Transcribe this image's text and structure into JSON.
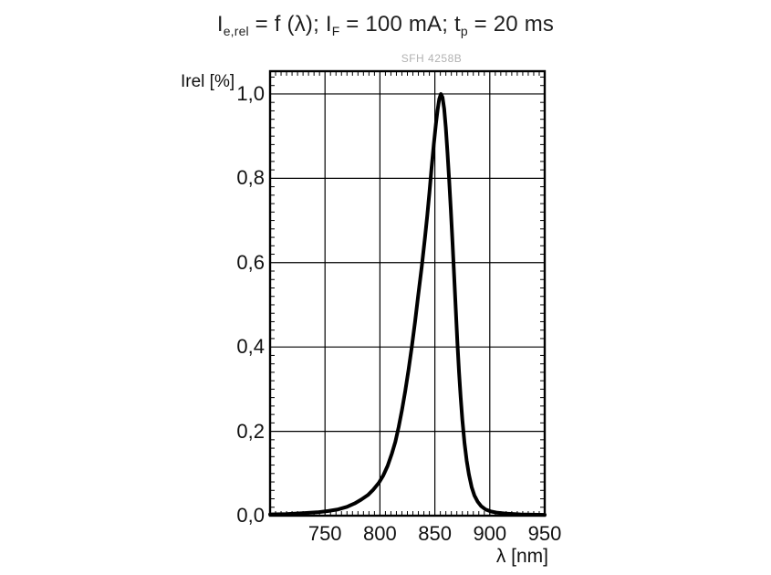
{
  "title_parts": [
    {
      "text": "I",
      "sub": false
    },
    {
      "text": "e,rel",
      "sub": true
    },
    {
      "text": " = f (λ); I",
      "sub": false
    },
    {
      "text": "F",
      "sub": true
    },
    {
      "text": " = 100 mA; t",
      "sub": false
    },
    {
      "text": "p",
      "sub": true
    },
    {
      "text": " = 20 ms",
      "sub": false
    }
  ],
  "watermark": "SFH 4258B",
  "y_axis": {
    "label": "Irel [%]",
    "tick_labels": [
      "1,0",
      "0,8",
      "0,6",
      "0,4",
      "0,2",
      "0,0"
    ],
    "tick_values": [
      1.0,
      0.8,
      0.6,
      0.4,
      0.2,
      0.0
    ],
    "min": 0,
    "max": 1.054,
    "minor_step": 0.02
  },
  "x_axis": {
    "label": "λ [nm]",
    "tick_labels": [
      "750",
      "800",
      "850",
      "900",
      "950"
    ],
    "tick_values": [
      750,
      800,
      850,
      900,
      950
    ],
    "min": 700,
    "max": 950,
    "minor_step": 5
  },
  "colors": {
    "curve": "#000000",
    "grid": "#000000",
    "frame": "#000000",
    "watermark": "#b2b2b2",
    "text": "#1a1a1a"
  },
  "chart_data": {
    "type": "line",
    "title": "Ie,rel = f (λ); IF = 100 mA; tp = 20 ms",
    "subtitle": "SFH 4258B",
    "xlabel": "λ [nm]",
    "ylabel": "Irel [%]",
    "xlim": [
      700,
      950
    ],
    "ylim": [
      0,
      1.054
    ],
    "grid": true,
    "legend_position": "none",
    "series": [
      {
        "name": "Relative radiant intensity vs wavelength",
        "peak_x": 855.5,
        "points": [
          [
            700,
            0.003
          ],
          [
            715,
            0.004
          ],
          [
            730,
            0.006
          ],
          [
            743,
            0.008
          ],
          [
            753,
            0.011
          ],
          [
            762,
            0.015
          ],
          [
            770,
            0.021
          ],
          [
            777,
            0.029
          ],
          [
            783,
            0.038
          ],
          [
            789,
            0.049
          ],
          [
            794,
            0.062
          ],
          [
            799,
            0.078
          ],
          [
            803,
            0.095
          ],
          [
            807,
            0.118
          ],
          [
            811,
            0.148
          ],
          [
            814,
            0.175
          ],
          [
            817,
            0.21
          ],
          [
            820,
            0.25
          ],
          [
            823,
            0.295
          ],
          [
            826,
            0.345
          ],
          [
            829,
            0.4
          ],
          [
            832,
            0.46
          ],
          [
            835,
            0.525
          ],
          [
            838,
            0.59
          ],
          [
            841,
            0.66
          ],
          [
            843,
            0.71
          ],
          [
            845,
            0.765
          ],
          [
            847,
            0.825
          ],
          [
            849,
            0.88
          ],
          [
            851,
            0.93
          ],
          [
            852.5,
            0.962
          ],
          [
            854,
            0.988
          ],
          [
            855.5,
            1.0
          ],
          [
            857,
            0.992
          ],
          [
            858.5,
            0.965
          ],
          [
            860,
            0.92
          ],
          [
            861.5,
            0.862
          ],
          [
            863,
            0.795
          ],
          [
            864.5,
            0.725
          ],
          [
            866,
            0.65
          ],
          [
            867.5,
            0.57
          ],
          [
            869,
            0.49
          ],
          [
            870.5,
            0.41
          ],
          [
            872,
            0.34
          ],
          [
            873.5,
            0.28
          ],
          [
            875,
            0.228
          ],
          [
            877,
            0.172
          ],
          [
            879,
            0.13
          ],
          [
            881,
            0.098
          ],
          [
            883.5,
            0.068
          ],
          [
            886,
            0.048
          ],
          [
            889,
            0.033
          ],
          [
            892,
            0.023
          ],
          [
            896,
            0.015
          ],
          [
            901,
            0.01
          ],
          [
            907,
            0.007
          ],
          [
            915,
            0.005
          ],
          [
            928,
            0.003
          ],
          [
            950,
            0.002
          ]
        ]
      }
    ]
  }
}
